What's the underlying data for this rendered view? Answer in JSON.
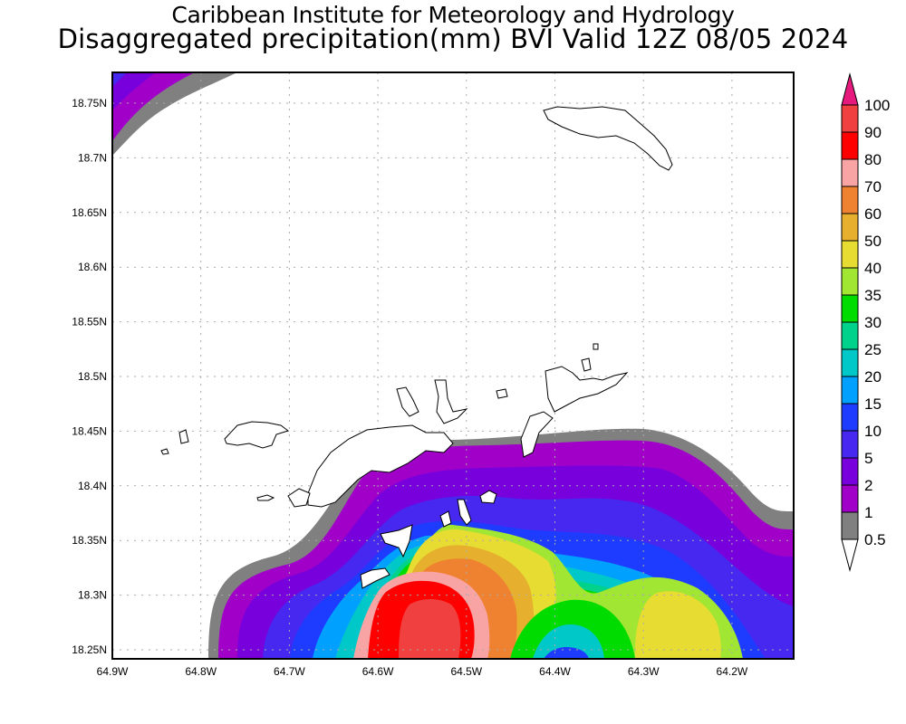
{
  "title": {
    "line1": "Caribbean Institute for Meteorology and Hydrology",
    "line2": "Disaggregated precipitation(mm) BVI Valid 12Z 08/05 2024"
  },
  "map": {
    "lon_ticks": [
      "64.9W",
      "64.8W",
      "64.7W",
      "64.6W",
      "64.5W",
      "64.4W",
      "64.3W",
      "64.2W"
    ],
    "lat_ticks": [
      "18.75N",
      "18.7N",
      "18.65N",
      "18.6N",
      "18.55N",
      "18.5N",
      "18.45N",
      "18.4N",
      "18.35N",
      "18.3N",
      "18.25N"
    ]
  },
  "colorbar": {
    "labels": [
      "100",
      "90",
      "80",
      "70",
      "60",
      "50",
      "40",
      "35",
      "30",
      "25",
      "20",
      "15",
      "10",
      "5",
      "2",
      "1",
      "0.5"
    ],
    "over_color": "#e6197d",
    "band_colors": [
      "#f04040",
      "#ff0000",
      "#f8a4a4",
      "#ef8230",
      "#e6af2d",
      "#e6dc32",
      "#a0e632",
      "#00dc00",
      "#00d28c",
      "#00c8c8",
      "#00a0ff",
      "#1e3cff",
      "#4628f0",
      "#7800dc",
      "#a000c8",
      "#808080"
    ],
    "under_color": "#ffffff"
  }
}
